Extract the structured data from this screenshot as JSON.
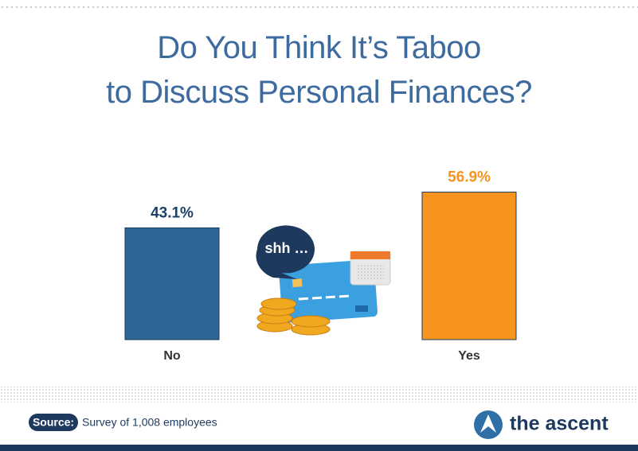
{
  "chart_data": {
    "type": "bar",
    "title": "Do You Think It’s Taboo\nto Discuss Personal Finances?",
    "categories": [
      "No",
      "Yes"
    ],
    "values": [
      43.1,
      56.9
    ],
    "value_labels": [
      "43.1%",
      "56.9%"
    ],
    "colors": [
      "#2f6597",
      "#f7941d"
    ],
    "value_label_colors": [
      "#1d3f6b",
      "#f7941d"
    ],
    "illustration_text": "shh …",
    "source_label": "Source:",
    "source_text": "Survey of 1,008 employees",
    "brand": "the ascent"
  }
}
